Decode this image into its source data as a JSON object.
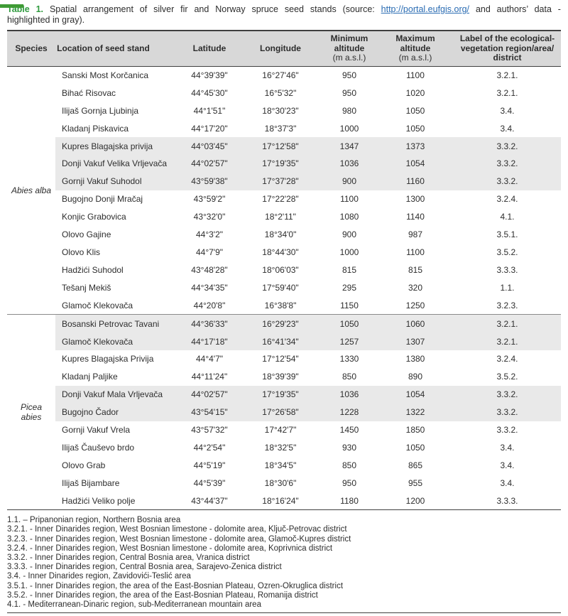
{
  "caption": {
    "label": "Table 1.",
    "before_link": "Spatial arrangement of silver fir and Norway spruce seed stands (source:",
    "link": "http://portal.eufgis.org/",
    "after_link": "and authors’ data -",
    "line2": "highlighted in gray)."
  },
  "colors": {
    "accent_green": "#3f9b35",
    "link_blue": "#2a6cb3",
    "header_gray": "#d8d8d8",
    "highlight_gray": "#e9e9e9"
  },
  "table": {
    "headers": {
      "species": "Species",
      "location": "Location of seed stand",
      "latitude": "Latitude",
      "longitude": "Longitude",
      "min_altitude": "Minimum\naltitude",
      "max_altitude": "Maximum\naltitude",
      "altitude_unit": "(m a.s.l.)",
      "region_label": "Label of the ecological-\nvegetation region/area/\ndistrict"
    },
    "groups": [
      {
        "species": "Abies alba",
        "rows": [
          {
            "location": "Sanski Most Korčanica",
            "latitude": "44°39'39\"",
            "longitude": "16°27'46\"",
            "min": "950",
            "max": "1100",
            "region": "3.2.1.",
            "highlighted": false
          },
          {
            "location": "Bihać Risovac",
            "latitude": "44°45'30\"",
            "longitude": "16°5'32\"",
            "min": "950",
            "max": "1020",
            "region": "3.2.1.",
            "highlighted": false
          },
          {
            "location": "Ilijaš Gornja Ljubinja",
            "latitude": "44°1'51\"",
            "longitude": "18°30'23\"",
            "min": "980",
            "max": "1050",
            "region": "3.4.",
            "highlighted": false
          },
          {
            "location": "Kladanj Piskavica",
            "latitude": "44°17'20\"",
            "longitude": "18°37'3\"",
            "min": "1000",
            "max": "1050",
            "region": "3.4.",
            "highlighted": false
          },
          {
            "location": "Kupres Blagajska privija",
            "latitude": "44°03'45\"",
            "longitude": "17°12'58\"",
            "min": "1347",
            "max": "1373",
            "region": "3.3.2.",
            "highlighted": true
          },
          {
            "location": "Donji Vakuf Velika Vrljevača",
            "latitude": "44°02'57\"",
            "longitude": "17°19'35\"",
            "min": "1036",
            "max": "1054",
            "region": "3.3.2.",
            "highlighted": true
          },
          {
            "location": "Gornji Vakuf Suhodol",
            "latitude": "43°59'38\"",
            "longitude": "17°37'28\"",
            "min": "900",
            "max": "1160",
            "region": "3.3.2.",
            "highlighted": true
          },
          {
            "location": "Bugojno Donji Mračaj",
            "latitude": "43°59'2\"",
            "longitude": "17°22'28\"",
            "min": "1100",
            "max": "1300",
            "region": "3.2.4.",
            "highlighted": false
          },
          {
            "location": "Konjic Grabovica",
            "latitude": "43°32'0\"",
            "longitude": "18°2'11\"",
            "min": "1080",
            "max": "1140",
            "region": "4.1.",
            "highlighted": false
          },
          {
            "location": "Olovo Gajine",
            "latitude": "44°3'2\"",
            "longitude": "18°34'0\"",
            "min": "900",
            "max": "987",
            "region": "3.5.1.",
            "highlighted": false
          },
          {
            "location": "Olovo Klis",
            "latitude": "44°7'9\"",
            "longitude": "18°44'30\"",
            "min": "1000",
            "max": "1100",
            "region": "3.5.2.",
            "highlighted": false
          },
          {
            "location": "Hadžići Suhodol",
            "latitude": "43°48'28\"",
            "longitude": "18°06'03\"",
            "min": "815",
            "max": "815",
            "region": "3.3.3.",
            "highlighted": false
          },
          {
            "location": "Tešanj Mekiš",
            "latitude": "44°34'35\"",
            "longitude": "17°59'40\"",
            "min": "295",
            "max": "320",
            "region": "1.1.",
            "highlighted": false
          },
          {
            "location": "Glamoč Klekovača",
            "latitude": "44°20'8\"",
            "longitude": "16°38'8\"",
            "min": "1150",
            "max": "1250",
            "region": "3.2.3.",
            "highlighted": false
          }
        ]
      },
      {
        "species": "Picea\nabies",
        "rows": [
          {
            "location": "Bosanski Petrovac Tavani",
            "latitude": "44°36'33\"",
            "longitude": "16°29'23\"",
            "min": "1050",
            "max": "1060",
            "region": "3.2.1.",
            "highlighted": true
          },
          {
            "location": "Glamoč Klekovača",
            "latitude": "44°17'18\"",
            "longitude": "16°41'34\"",
            "min": "1257",
            "max": "1307",
            "region": "3.2.1.",
            "highlighted": true
          },
          {
            "location": "Kupres Blagajska Privija",
            "latitude": "44°4'7\"",
            "longitude": "17°12'54\"",
            "min": "1330",
            "max": "1380",
            "region": "3.2.4.",
            "highlighted": false
          },
          {
            "location": "Kladanj Paljike",
            "latitude": "44°11'24\"",
            "longitude": "18°39'39\"",
            "min": "850",
            "max": "890",
            "region": "3.5.2.",
            "highlighted": false
          },
          {
            "location": "Donji Vakuf Mala Vrljevača",
            "latitude": "44°02'57\"",
            "longitude": "17°19'35\"",
            "min": "1036",
            "max": "1054",
            "region": "3.3.2.",
            "highlighted": true
          },
          {
            "location": "Bugojno Čador",
            "latitude": "43°54'15\"",
            "longitude": "17°26'58\"",
            "min": "1228",
            "max": "1322",
            "region": "3.3.2.",
            "highlighted": true
          },
          {
            "location": "Gornji Vakuf Vrela",
            "latitude": "43°57'32\"",
            "longitude": "17°42'7\"",
            "min": "1450",
            "max": "1850",
            "region": "3.3.2.",
            "highlighted": false
          },
          {
            "location": "Ilijaš Čauševo brdo",
            "latitude": "44°2'54\"",
            "longitude": "18°32'5\"",
            "min": "930",
            "max": "1050",
            "region": "3.4.",
            "highlighted": false
          },
          {
            "location": "Olovo Grab",
            "latitude": "44°5'19\"",
            "longitude": "18°34'5\"",
            "min": "850",
            "max": "865",
            "region": "3.4.",
            "highlighted": false
          },
          {
            "location": "Ilijaš Bijambare",
            "latitude": "44°5'39\"",
            "longitude": "18°30'6\"",
            "min": "950",
            "max": "955",
            "region": "3.4.",
            "highlighted": false
          },
          {
            "location": "Hadžići Veliko polje",
            "latitude": "43°44'37\"",
            "longitude": "18°16'24\"",
            "min": "1180",
            "max": "1200",
            "region": "3.3.3.",
            "highlighted": false
          }
        ]
      }
    ]
  },
  "footnotes": [
    "1.1. – Pripanonian region, Northern Bosnia area",
    "3.2.1. - Inner Dinarides region, West Bosnian limestone - dolomite area, Ključ-Petrovac district",
    "3.2.3. - Inner Dinarides region, West Bosnian limestone - dolomite area, Glamoč-Kupres district",
    "3.2.4. - Inner Dinarides region, West Bosnian limestone - dolomite area, Koprivnica district",
    "3.3.2. - Inner Dinarides region, Central Bosnia area, Vranica district",
    "3.3.3. - Inner Dinarides region, Central Bosnia area, Sarajevo-Zenica district",
    "3.4. - Inner Dinarides region, Zavidovići-Teslić area",
    "3.5.1. - Inner Dinarides region, the area of the East-Bosnian Plateau, Ozren-Okruglica district",
    "3.5.2. - Inner Dinarides region, the area of the East-Bosnian Plateau, Romanija district",
    "4.1. - Mediterranean-Dinaric region, sub-Mediterranean mountain area"
  ]
}
